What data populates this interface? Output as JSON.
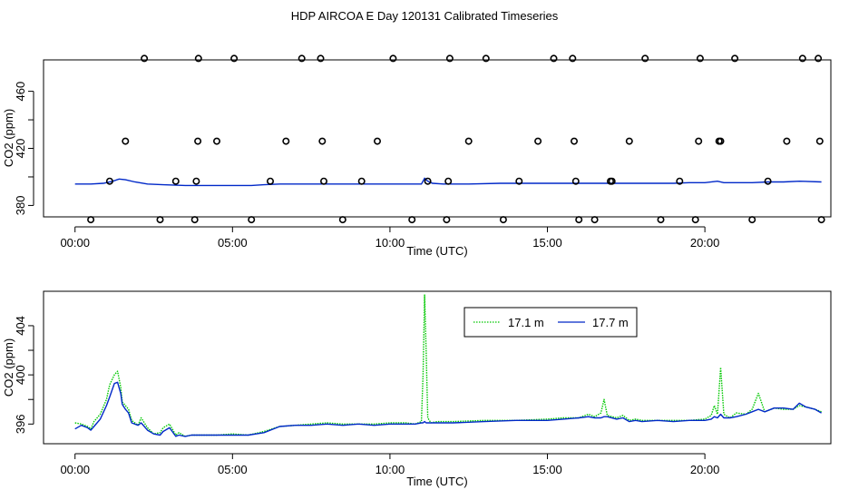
{
  "title": "HDP AIRCOA E  Day 120131  Calibrated Timeseries",
  "colors": {
    "green": "#00c800",
    "blue": "#0028c8",
    "black": "#000000"
  },
  "chart_data": [
    {
      "type": "scatter",
      "xlabel": "Time (UTC)",
      "ylabel": "CO2 (ppm)",
      "xlim": [
        -1.0,
        24.0
      ],
      "ylim": [
        372,
        482
      ],
      "xticks": [
        0,
        5,
        10,
        15,
        20
      ],
      "xtick_labels": [
        "00:00",
        "05:00",
        "10:00",
        "15:00",
        "20:00"
      ],
      "yticks": [
        380,
        420,
        460
      ],
      "ytick_labels": [
        "380",
        "420",
        "460"
      ],
      "yticks_minor": [
        400,
        440
      ],
      "line": {
        "x": [
          0.0,
          0.5,
          0.9,
          1.2,
          1.4,
          1.6,
          1.9,
          2.3,
          2.8,
          3.5,
          4.2,
          5.0,
          5.6,
          6.0,
          6.5,
          7.5,
          8.5,
          9.5,
          10.5,
          11.0,
          11.1,
          11.2,
          11.35,
          11.7,
          12.5,
          13.5,
          14.5,
          15.5,
          16.0,
          16.5,
          16.8,
          17.2,
          18.0,
          19.0,
          19.5,
          20.0,
          20.4,
          20.6,
          21.0,
          21.5,
          22.0,
          22.5,
          23.0,
          23.7
        ],
        "y": [
          395,
          395,
          395.5,
          397,
          398.5,
          398,
          396.5,
          395,
          394.5,
          394,
          394,
          394,
          394,
          394.5,
          395,
          395,
          395,
          395,
          395,
          395,
          399,
          397,
          395.5,
          395,
          395,
          395.5,
          395.5,
          395.5,
          395.5,
          395.5,
          395.5,
          395.5,
          395.5,
          395.5,
          396,
          396,
          397,
          396,
          396,
          396,
          396.5,
          396.5,
          397,
          396.5
        ]
      },
      "points": {
        "x": [
          0.5,
          1.1,
          1.6,
          2.2,
          2.7,
          3.2,
          3.8,
          3.85,
          3.9,
          3.92,
          4.5,
          5.05,
          5.6,
          6.2,
          6.7,
          7.2,
          7.8,
          7.85,
          7.9,
          8.5,
          9.1,
          9.6,
          10.1,
          10.7,
          11.2,
          11.8,
          11.85,
          11.9,
          12.5,
          13.05,
          13.6,
          14.1,
          14.7,
          15.2,
          15.8,
          15.85,
          15.9,
          16.0,
          16.5,
          17.0,
          17.05,
          17.6,
          18.1,
          18.6,
          19.2,
          19.7,
          19.8,
          19.85,
          20.45,
          20.5,
          20.95,
          21.5,
          22.0,
          22.6,
          23.1,
          23.6,
          23.65,
          23.7
        ],
        "y": [
          370,
          397,
          425,
          483,
          370,
          397,
          370,
          397,
          425,
          483,
          425,
          483,
          370,
          397,
          425,
          483,
          483,
          425,
          397,
          370,
          397,
          425,
          483,
          370,
          397,
          370,
          397,
          483,
          425,
          483,
          370,
          397,
          425,
          483,
          483,
          425,
          397,
          370,
          370,
          397,
          397,
          425,
          483,
          370,
          397,
          370,
          425,
          483,
          425,
          425,
          483,
          370,
          397,
          425,
          483,
          483,
          425,
          370
        ]
      }
    },
    {
      "type": "line",
      "xlabel": "Time (UTC)",
      "ylabel": "CO2 (ppm)",
      "xlim": [
        -1.0,
        24.0
      ],
      "ylim": [
        394.4,
        406.8
      ],
      "xticks": [
        0,
        5,
        10,
        15,
        20
      ],
      "xtick_labels": [
        "00:00",
        "05:00",
        "10:00",
        "15:00",
        "20:00"
      ],
      "yticks": [
        396,
        400,
        404
      ],
      "ytick_labels": [
        "396",
        "400",
        "404"
      ],
      "yticks_minor": [
        398,
        402
      ],
      "legend_position": "top-center",
      "series": [
        {
          "name": "17.1 m",
          "color": "green",
          "style": "dotted",
          "x": [
            0.0,
            0.2,
            0.4,
            0.5,
            0.6,
            0.8,
            1.0,
            1.1,
            1.25,
            1.35,
            1.45,
            1.5,
            1.6,
            1.7,
            1.8,
            2.0,
            2.1,
            2.3,
            2.5,
            2.7,
            2.8,
            3.0,
            3.2,
            3.3,
            3.5,
            3.7,
            4.0,
            4.5,
            5.0,
            5.5,
            6.0,
            6.5,
            7.0,
            7.5,
            8.0,
            8.5,
            9.0,
            9.5,
            10.0,
            10.5,
            10.8,
            11.0,
            11.05,
            11.1,
            11.15,
            11.2,
            11.3,
            11.5,
            12.0,
            13.0,
            14.0,
            15.0,
            15.5,
            16.0,
            16.3,
            16.5,
            16.7,
            16.8,
            16.9,
            17.2,
            17.4,
            17.6,
            17.8,
            18.0,
            18.5,
            19.0,
            19.5,
            20.0,
            20.2,
            20.3,
            20.4,
            20.5,
            20.6,
            20.8,
            21.0,
            21.3,
            21.5,
            21.7,
            21.9,
            22.2,
            22.5,
            22.8,
            23.0,
            23.2,
            23.5,
            23.7
          ],
          "y": [
            396.1,
            396.0,
            395.8,
            395.6,
            396.2,
            396.8,
            398.0,
            399.2,
            400.0,
            400.3,
            399.0,
            397.8,
            397.5,
            397.2,
            396.3,
            395.9,
            396.5,
            395.7,
            395.2,
            395.3,
            395.7,
            396.0,
            395.1,
            395.3,
            395.0,
            395.1,
            395.1,
            395.1,
            395.2,
            395.1,
            395.4,
            395.8,
            395.9,
            396.0,
            396.1,
            396.0,
            396.0,
            396.0,
            396.1,
            396.1,
            396.0,
            396.2,
            400.0,
            406.5,
            402.0,
            396.5,
            396.1,
            396.2,
            396.2,
            396.3,
            396.3,
            396.4,
            396.5,
            396.5,
            396.8,
            396.6,
            396.9,
            398.0,
            396.7,
            396.5,
            396.7,
            396.3,
            396.4,
            396.3,
            396.3,
            396.3,
            396.3,
            396.4,
            396.7,
            397.5,
            396.8,
            400.6,
            396.8,
            396.5,
            396.9,
            396.8,
            397.2,
            398.5,
            397.0,
            397.3,
            397.2,
            397.2,
            397.5,
            397.4,
            397.2,
            397.0
          ]
        },
        {
          "name": "17.7 m",
          "color": "blue",
          "style": "solid",
          "x": [
            0.0,
            0.2,
            0.4,
            0.5,
            0.6,
            0.8,
            1.0,
            1.1,
            1.25,
            1.35,
            1.45,
            1.5,
            1.6,
            1.7,
            1.8,
            2.0,
            2.1,
            2.3,
            2.5,
            2.7,
            2.8,
            3.0,
            3.2,
            3.3,
            3.5,
            3.7,
            4.0,
            4.5,
            5.0,
            5.5,
            6.0,
            6.5,
            7.0,
            7.5,
            8.0,
            8.5,
            9.0,
            9.5,
            10.0,
            10.5,
            10.8,
            11.0,
            11.05,
            11.1,
            11.15,
            11.2,
            11.3,
            11.5,
            12.0,
            13.0,
            14.0,
            15.0,
            15.5,
            16.0,
            16.3,
            16.5,
            16.7,
            16.8,
            16.9,
            17.2,
            17.4,
            17.6,
            17.8,
            18.0,
            18.5,
            19.0,
            19.5,
            20.0,
            20.2,
            20.3,
            20.4,
            20.5,
            20.6,
            20.8,
            21.0,
            21.3,
            21.5,
            21.7,
            21.9,
            22.2,
            22.5,
            22.8,
            23.0,
            23.2,
            23.5,
            23.7
          ],
          "y": [
            395.6,
            395.9,
            395.7,
            395.5,
            395.8,
            396.4,
            397.5,
            398.2,
            399.3,
            399.4,
            398.5,
            397.6,
            397.2,
            396.9,
            396.1,
            395.9,
            396.1,
            395.5,
            395.2,
            395.1,
            395.4,
            395.7,
            395.0,
            395.1,
            395.0,
            395.1,
            395.1,
            395.1,
            395.1,
            395.1,
            395.3,
            395.8,
            395.9,
            395.9,
            396.0,
            395.9,
            396.0,
            395.9,
            396.0,
            396.0,
            396.0,
            396.1,
            396.1,
            396.2,
            396.1,
            396.1,
            396.1,
            396.1,
            396.1,
            396.2,
            396.3,
            396.3,
            396.4,
            396.5,
            396.6,
            396.5,
            396.5,
            396.6,
            396.6,
            396.4,
            396.5,
            396.2,
            396.3,
            396.2,
            396.3,
            396.2,
            396.3,
            396.3,
            396.4,
            396.6,
            396.5,
            396.8,
            396.5,
            396.5,
            396.6,
            396.8,
            397.0,
            397.2,
            397.0,
            397.3,
            397.3,
            397.2,
            397.7,
            397.4,
            397.2,
            396.9
          ]
        }
      ]
    }
  ]
}
